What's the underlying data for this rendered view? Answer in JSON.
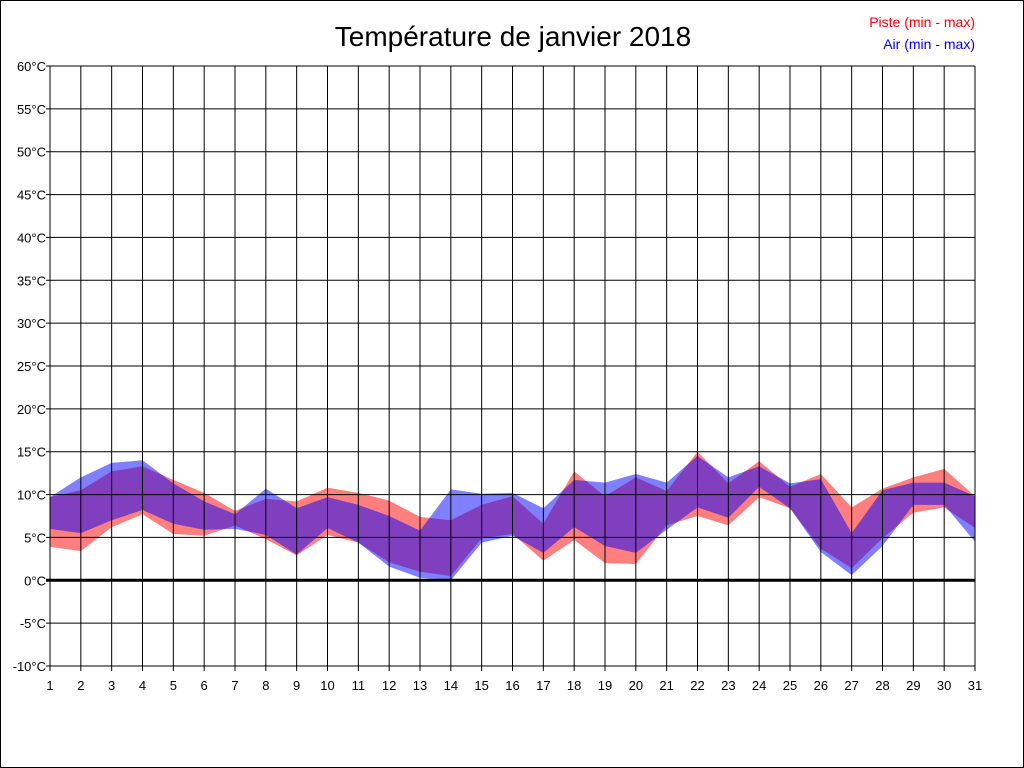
{
  "chart_data": {
    "type": "area",
    "title": "Température de janvier 2018",
    "xlabel": "",
    "ylabel": "",
    "x": [
      1,
      2,
      3,
      4,
      5,
      6,
      7,
      8,
      9,
      10,
      11,
      12,
      13,
      14,
      15,
      16,
      17,
      18,
      19,
      20,
      21,
      22,
      23,
      24,
      25,
      26,
      27,
      28,
      29,
      30,
      31
    ],
    "xlim": [
      1,
      31
    ],
    "ylim": [
      -10,
      60
    ],
    "y_ticks": [
      -10,
      -5,
      0,
      5,
      10,
      15,
      20,
      25,
      30,
      35,
      40,
      45,
      50,
      55,
      60
    ],
    "y_tick_suffix": "°C",
    "grid": true,
    "legend_placement": "top-right",
    "series": [
      {
        "name": "Piste (min - max)",
        "color": "#ff0000",
        "max": [
          9.7,
          10.5,
          12.7,
          13.3,
          11.7,
          10.2,
          8.1,
          9.5,
          9.2,
          10.8,
          10.2,
          9.3,
          7.4,
          7.0,
          8.8,
          9.8,
          6.6,
          12.7,
          9.8,
          12.0,
          10.4,
          15.0,
          11.3,
          13.9,
          10.9,
          12.4,
          8.5,
          10.7,
          12.0,
          13.0,
          9.8
        ],
        "min": [
          3.9,
          3.4,
          6.2,
          7.7,
          5.4,
          5.2,
          6.4,
          4.8,
          2.9,
          5.3,
          4.4,
          2.1,
          1.0,
          0.5,
          4.9,
          5.4,
          2.3,
          4.7,
          2.0,
          1.9,
          6.4,
          7.5,
          6.4,
          9.7,
          8.4,
          3.7,
          1.4,
          4.9,
          7.9,
          8.5,
          6.1
        ]
      },
      {
        "name": "Air (min - max)",
        "color": "#0000ff",
        "max": [
          9.7,
          12.0,
          13.7,
          14.0,
          11.3,
          9.2,
          7.7,
          10.7,
          8.4,
          9.7,
          8.8,
          7.5,
          5.8,
          10.6,
          10.1,
          10.2,
          8.4,
          11.7,
          11.4,
          12.4,
          11.4,
          14.5,
          12.0,
          13.3,
          11.3,
          11.8,
          5.5,
          10.5,
          11.4,
          11.4,
          9.8
        ],
        "min": [
          6.0,
          5.5,
          7.0,
          8.2,
          6.6,
          5.9,
          6.0,
          5.3,
          3.0,
          6.1,
          4.4,
          1.6,
          0.3,
          0.0,
          4.4,
          5.2,
          3.2,
          6.2,
          4.0,
          3.2,
          5.9,
          8.5,
          7.3,
          10.9,
          8.4,
          3.3,
          0.6,
          4.0,
          8.8,
          8.8,
          4.5
        ]
      }
    ]
  }
}
